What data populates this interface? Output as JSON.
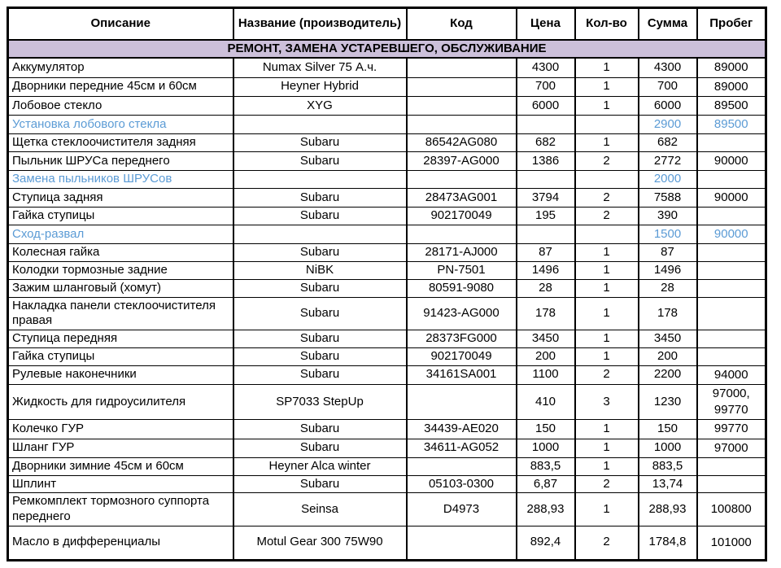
{
  "table": {
    "columns": [
      {
        "key": "desc",
        "label": "Описание"
      },
      {
        "key": "name",
        "label": "Название (производитель)"
      },
      {
        "key": "code",
        "label": "Код"
      },
      {
        "key": "price",
        "label": "Цена"
      },
      {
        "key": "qty",
        "label": "Кол-во"
      },
      {
        "key": "sum",
        "label": "Сумма"
      },
      {
        "key": "mileage",
        "label": "Пробег"
      }
    ],
    "section_header": "РЕМОНТ, ЗАМЕНА УСТАРЕВШЕГО, ОБСЛУЖИВАНИЕ",
    "rows": [
      {
        "desc": "Аккумулятор",
        "name": "Numax Silver 75 А.ч.",
        "code": "",
        "price": "4300",
        "qty": "1",
        "sum": "4300",
        "mileage": "89000",
        "service": false
      },
      {
        "desc": "Дворники передние 45см и 60см",
        "name": "Heyner Hybrid",
        "code": "",
        "price": "700",
        "qty": "1",
        "sum": "700",
        "mileage": "89000",
        "service": false
      },
      {
        "desc": "Лобовое стекло",
        "name": "XYG",
        "code": "",
        "price": "6000",
        "qty": "1",
        "sum": "6000",
        "mileage": "89500",
        "service": false
      },
      {
        "desc": "Установка лобового стекла",
        "name": "",
        "code": "",
        "price": "",
        "qty": "",
        "sum": "2900",
        "mileage": "89500",
        "service": true
      },
      {
        "desc": "Щетка стеклоочистителя задняя",
        "name": "Subaru",
        "code": "86542AG080",
        "price": "682",
        "qty": "1",
        "sum": "682",
        "mileage": "",
        "service": false
      },
      {
        "desc": "Пыльник ШРУСа переднего",
        "name": "Subaru",
        "code": "28397-AG000",
        "price": "1386",
        "qty": "2",
        "sum": "2772",
        "mileage": "90000",
        "service": false
      },
      {
        "desc": "Замена пыльников ШРУСов",
        "name": "",
        "code": "",
        "price": "",
        "qty": "",
        "sum": "2000",
        "mileage": "",
        "service": true
      },
      {
        "desc": "Ступица задняя",
        "name": "Subaru",
        "code": "28473AG001",
        "price": "3794",
        "qty": "2",
        "sum": "7588",
        "mileage": "90000",
        "service": false
      },
      {
        "desc": "Гайка ступицы",
        "name": "Subaru",
        "code": "902170049",
        "price": "195",
        "qty": "2",
        "sum": "390",
        "mileage": "",
        "service": false
      },
      {
        "desc": "Сход-развал",
        "name": "",
        "code": "",
        "price": "",
        "qty": "",
        "sum": "1500",
        "mileage": "90000",
        "service": true
      },
      {
        "desc": "Колесная гайка",
        "name": "Subaru",
        "code": "28171-AJ000",
        "price": "87",
        "qty": "1",
        "sum": "87",
        "mileage": "",
        "service": false
      },
      {
        "desc": "Колодки тормозные задние",
        "name": "NiBK",
        "code": "PN-7501",
        "price": "1496",
        "qty": "1",
        "sum": "1496",
        "mileage": "",
        "service": false
      },
      {
        "desc": "Зажим шланговый (хомут)",
        "name": "Subaru",
        "code": "80591-9080",
        "price": "28",
        "qty": "1",
        "sum": "28",
        "mileage": "",
        "service": false
      },
      {
        "desc": "Накладка панели стеклоочистителя правая",
        "name": "Subaru",
        "code": "91423-AG000",
        "price": "178",
        "qty": "1",
        "sum": "178",
        "mileage": "",
        "service": false
      },
      {
        "desc": "Ступица передняя",
        "name": "Subaru",
        "code": "28373FG000",
        "price": "3450",
        "qty": "1",
        "sum": "3450",
        "mileage": "",
        "service": false
      },
      {
        "desc": "Гайка ступицы",
        "name": "Subaru",
        "code": "902170049",
        "price": "200",
        "qty": "1",
        "sum": "200",
        "mileage": "",
        "service": false
      },
      {
        "desc": "Рулевые наконечники",
        "name": "Subaru",
        "code": "34161SA001",
        "price": "1100",
        "qty": "2",
        "sum": "2200",
        "mileage": "94000",
        "service": false
      },
      {
        "desc": "Жидкость для гидроусилителя",
        "name": "SP7033 StepUp",
        "code": "",
        "price": "410",
        "qty": "3",
        "sum": "1230",
        "mileage": "97000, 99770",
        "service": false
      },
      {
        "desc": "Колечко ГУР",
        "name": "Subaru",
        "code": "34439-AE020",
        "price": "150",
        "qty": "1",
        "sum": "150",
        "mileage": "99770",
        "service": false
      },
      {
        "desc": "Шланг ГУР",
        "name": "Subaru",
        "code": "34611-AG052",
        "price": "1000",
        "qty": "1",
        "sum": "1000",
        "mileage": "97000",
        "service": false
      },
      {
        "desc": "Дворники зимние 45см и 60см",
        "name": "Heyner Alca winter",
        "code": "",
        "price": "883,5",
        "qty": "1",
        "sum": "883,5",
        "mileage": "",
        "service": false
      },
      {
        "desc": "Шплинт",
        "name": "Subaru",
        "code": "05103-0300",
        "price": "6,87",
        "qty": "2",
        "sum": "13,74",
        "mileage": "",
        "service": false
      },
      {
        "desc": "Ремкомплект тормозного суппорта переднего",
        "name": "Seinsa",
        "code": "D4973",
        "price": "288,93",
        "qty": "1",
        "sum": "288,93",
        "mileage": "100800",
        "service": false
      },
      {
        "desc": "Масло в дифференциалы",
        "name": "Motul Gear 300 75W90",
        "code": "",
        "price": "892,4",
        "qty": "2",
        "sum": "1784,8",
        "mileage": "101000",
        "service": false,
        "tall": true
      }
    ]
  },
  "colors": {
    "section_band_bg": "#CCC0DA",
    "service_row_text": "#5B9BD5",
    "body_text": "#000000",
    "grid_border": "#000000"
  }
}
